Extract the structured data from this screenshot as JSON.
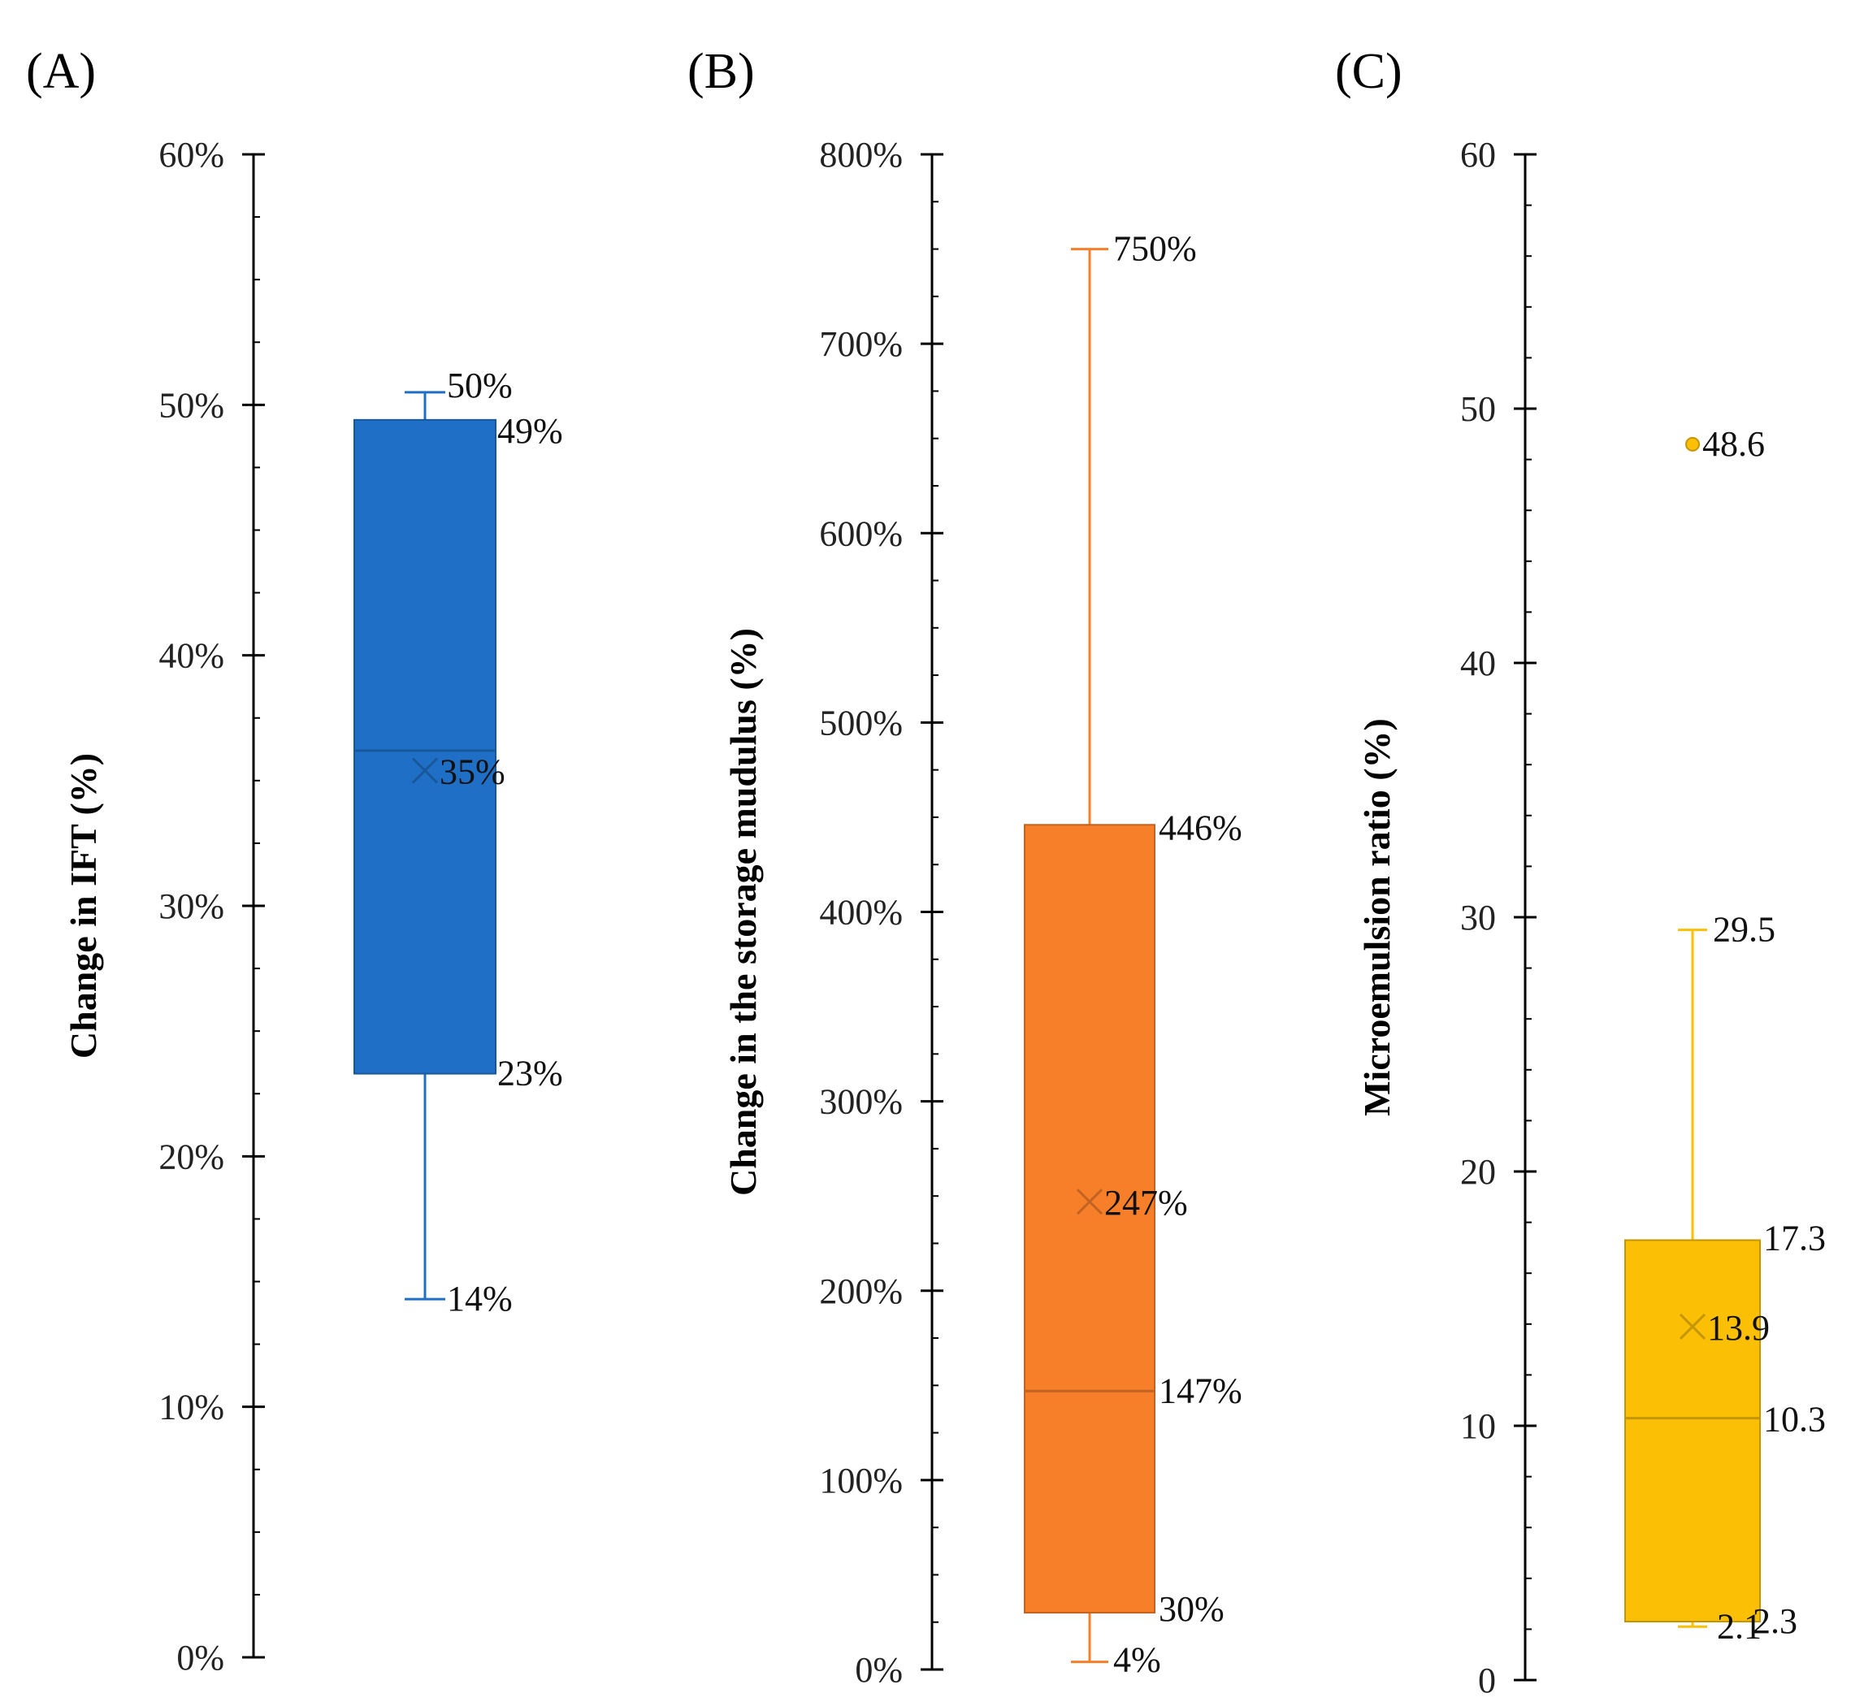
{
  "chart_data": [
    {
      "type": "box",
      "panel_label": "(A)",
      "ylabel": "Change in IFT (%)",
      "ylim": [
        0,
        60
      ],
      "yticks": [
        0,
        10,
        20,
        30,
        40,
        50,
        60
      ],
      "ytick_labels": [
        "0%",
        "10%",
        "20%",
        "30%",
        "40%",
        "50%",
        "60%"
      ],
      "color": "#1f6fc6",
      "box": {
        "whisker_low": 14.3,
        "q1": 23.3,
        "median": 36.2,
        "mean": 35.4,
        "q3": 49.4,
        "whisker_high": 50.5,
        "outliers": []
      },
      "labels": {
        "whisker_high": "50%",
        "q3": "49%",
        "mean": "35%",
        "q1": "23%",
        "whisker_low": "14%"
      }
    },
    {
      "type": "box",
      "panel_label": "(B)",
      "ylabel": "Change in the storage mudulus (%)",
      "ylim": [
        0,
        800
      ],
      "yticks": [
        0,
        100,
        200,
        300,
        400,
        500,
        600,
        700,
        800
      ],
      "ytick_labels": [
        "0%",
        "100%",
        "200%",
        "300%",
        "400%",
        "500%",
        "600%",
        "700%",
        "800%"
      ],
      "color": "#f77f2a",
      "box": {
        "whisker_low": 4,
        "q1": 30,
        "median": 147,
        "mean": 247,
        "q3": 446,
        "whisker_high": 750,
        "outliers": []
      },
      "labels": {
        "whisker_high": "750%",
        "q3": "446%",
        "mean": "247%",
        "median": "147%",
        "q1": "30%",
        "whisker_low": "4%"
      }
    },
    {
      "type": "box",
      "panel_label": "(C)",
      "ylabel": "Microemulsion ratio (%)",
      "ylim": [
        0,
        60
      ],
      "yticks": [
        0,
        10,
        20,
        30,
        40,
        50,
        60
      ],
      "ytick_labels": [
        "0",
        "10",
        "20",
        "30",
        "40",
        "50",
        "60"
      ],
      "color": "#fbbf06",
      "box": {
        "whisker_low": 2.1,
        "q1": 2.3,
        "median": 10.3,
        "mean": 13.9,
        "q3": 17.3,
        "whisker_high": 29.5,
        "outliers": [
          48.6
        ]
      },
      "labels": {
        "outlier": "48.6",
        "whisker_high": "29.5",
        "q3": "17.3",
        "mean": "13.9",
        "median": "10.3",
        "whisker_low": "2.1",
        "q1": "2.3"
      }
    }
  ]
}
